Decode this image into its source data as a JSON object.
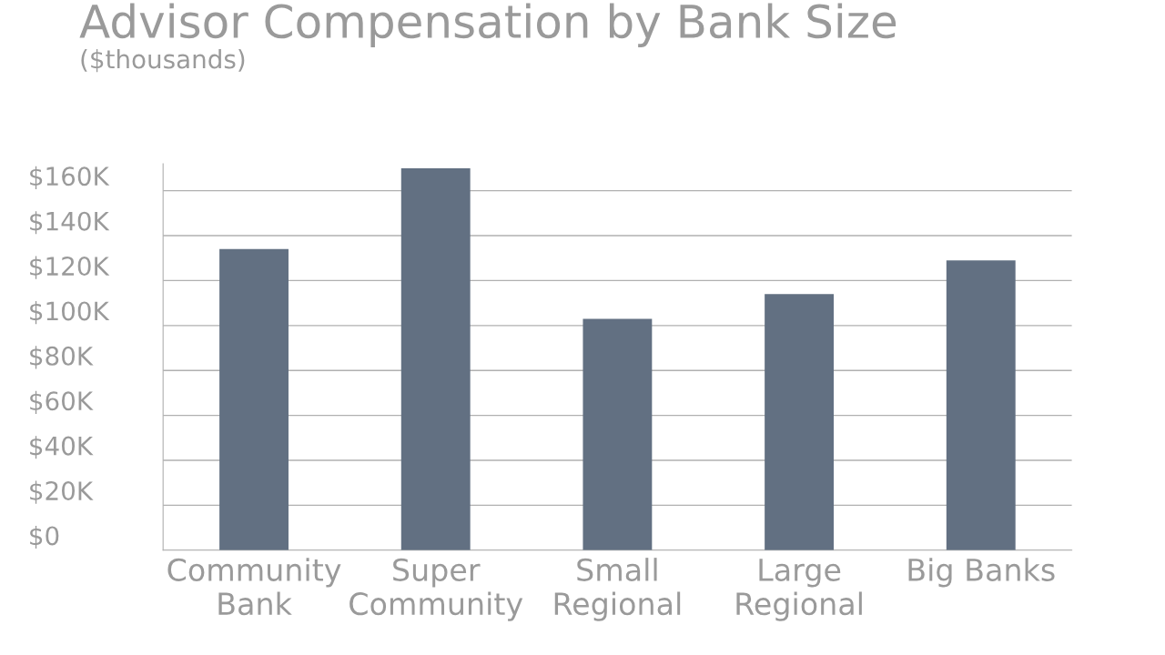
{
  "chart_data": {
    "type": "bar",
    "title": "Advisor Compensation by Bank Size",
    "subtitle": "($thousands)",
    "categories": [
      "Community\nBank",
      "Super\nCommunity",
      "Small\nRegional",
      "Large\nRegional",
      "Big Banks"
    ],
    "values": [
      134,
      170,
      103,
      114,
      129
    ],
    "color": "#627082",
    "ylim": [
      0,
      172
    ],
    "yticks": [
      {
        "value": 0,
        "label": "$0"
      },
      {
        "value": 20,
        "label": "$20K"
      },
      {
        "value": 40,
        "label": "$40K"
      },
      {
        "value": 60,
        "label": "$60K"
      },
      {
        "value": 80,
        "label": "$80K"
      },
      {
        "value": 100,
        "label": "$100K"
      },
      {
        "value": 120,
        "label": "$120K"
      },
      {
        "value": 140,
        "label": "$140K"
      },
      {
        "value": 160,
        "label": "$160K"
      }
    ],
    "grid": "y",
    "legend": false
  }
}
